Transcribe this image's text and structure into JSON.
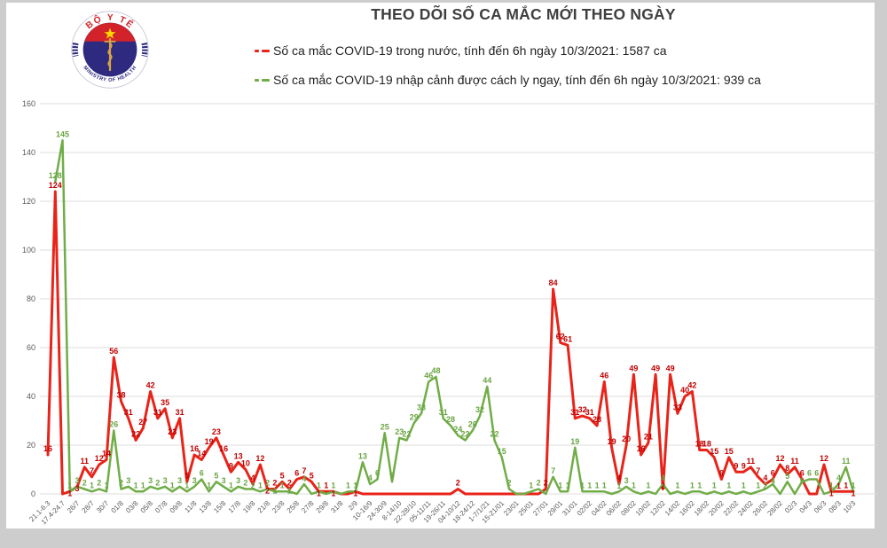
{
  "header": {
    "title": "THEO DÕI SỐ CA MẮC MỚI THEO NGÀY",
    "logo": {
      "top_text": "BỘ Y TẾ",
      "bottom_text": "MINISTRY OF HEALTH"
    }
  },
  "legend": [
    {
      "label": "Số ca mắc COVID-19 trong nước, tính đến 6h ngày 10/3/2021: 1587 ca",
      "color": "#c00000"
    },
    {
      "label": "Số ca mắc COVID-19 nhập cảnh được cách ly ngay, tính đến 6h ngày 10/3/2021: 939 ca",
      "color": "#6aa544"
    }
  ],
  "chart_data": {
    "type": "line",
    "title": "THEO DÕI SỐ CA MẮC MỚI THEO NGÀY",
    "grid": true,
    "ylim": [
      0,
      160
    ],
    "y_ticks": [
      0,
      20,
      40,
      60,
      80,
      100,
      120,
      140,
      160
    ],
    "x_tick_every": 2,
    "x_tick_labels": [
      "21.1-6.3",
      "17.4-24.7",
      "26/7",
      "28/7",
      "30/7",
      "01/8",
      "03/8",
      "05/8",
      "07/8",
      "09/8",
      "11/8",
      "13/8",
      "15/8",
      "17/8",
      "19/8",
      "21/8",
      "23/8",
      "25/8",
      "27/8",
      "29/8",
      "31/8",
      "2/9",
      "10-16/9",
      "24-30/9",
      "8-14/10",
      "22-28/10",
      "05-11/11",
      "19-26/11",
      "04-10/12",
      "18-24/12",
      "1-7/1/21",
      "15-21/01",
      "23/01",
      "25/01",
      "27/01",
      "29/01",
      "31/01",
      "02/02",
      "04/02",
      "06/02",
      "08/02",
      "10/02",
      "12/02",
      "14/02",
      "16/02",
      "18/02",
      "20/02",
      "22/02",
      "24/02",
      "26/02",
      "28/02",
      "02/3",
      "04/3",
      "06/3",
      "08/3",
      "10/3"
    ],
    "series": [
      {
        "name": "Số ca mắc COVID-19 trong nước",
        "color": "#e8241a",
        "label_color": "#c00000",
        "width": 3,
        "total_label": "1587 ca",
        "values": [
          16,
          124,
          0,
          1,
          3,
          11,
          7,
          12,
          14,
          56,
          38,
          31,
          22,
          27,
          42,
          31,
          35,
          23,
          31,
          5,
          16,
          14,
          19,
          23,
          16,
          9,
          13,
          10,
          4,
          12,
          2,
          2,
          5,
          2,
          6,
          7,
          5,
          1,
          1,
          1,
          0,
          0,
          1,
          0,
          0,
          0,
          0,
          0,
          0,
          0,
          0,
          0,
          0,
          0,
          0,
          0,
          2,
          0,
          0,
          0,
          0,
          0,
          0,
          0,
          0,
          0,
          0,
          0,
          2,
          84,
          62,
          61,
          31,
          32,
          31,
          28,
          46,
          19,
          4,
          20,
          49,
          16,
          21,
          49,
          2,
          49,
          33,
          40,
          42,
          18,
          18,
          15,
          6,
          15,
          9,
          9,
          11,
          7,
          4,
          6,
          12,
          8,
          11,
          6,
          0,
          0,
          12,
          1,
          1,
          1,
          1
        ]
      },
      {
        "name": "Số ca mắc COVID-19 nhập cảnh được cách ly ngay",
        "color": "#70ad47",
        "label_color": "#6aa544",
        "width": 2.5,
        "total_label": "939 ca",
        "values": [
          null,
          128,
          145,
          1,
          3,
          2,
          1,
          2,
          1,
          26,
          2,
          3,
          1,
          1,
          3,
          2,
          3,
          1,
          3,
          1,
          3,
          6,
          1,
          5,
          3,
          1,
          3,
          2,
          2,
          1,
          2,
          1,
          1,
          1,
          0,
          4,
          0,
          1,
          0,
          1,
          0,
          1,
          1,
          13,
          4,
          6,
          25,
          5,
          23,
          22,
          29,
          33,
          46,
          48,
          31,
          28,
          24,
          22,
          26,
          32,
          44,
          22,
          15,
          2,
          0,
          0,
          1,
          2,
          0,
          7,
          1,
          1,
          19,
          1,
          1,
          1,
          1,
          0,
          1,
          3,
          1,
          0,
          1,
          0,
          4,
          0,
          1,
          0,
          1,
          1,
          0,
          1,
          0,
          1,
          0,
          1,
          0,
          1,
          2,
          4,
          0,
          5,
          0,
          5,
          6,
          6,
          0,
          1,
          4,
          11,
          1
        ]
      }
    ]
  }
}
